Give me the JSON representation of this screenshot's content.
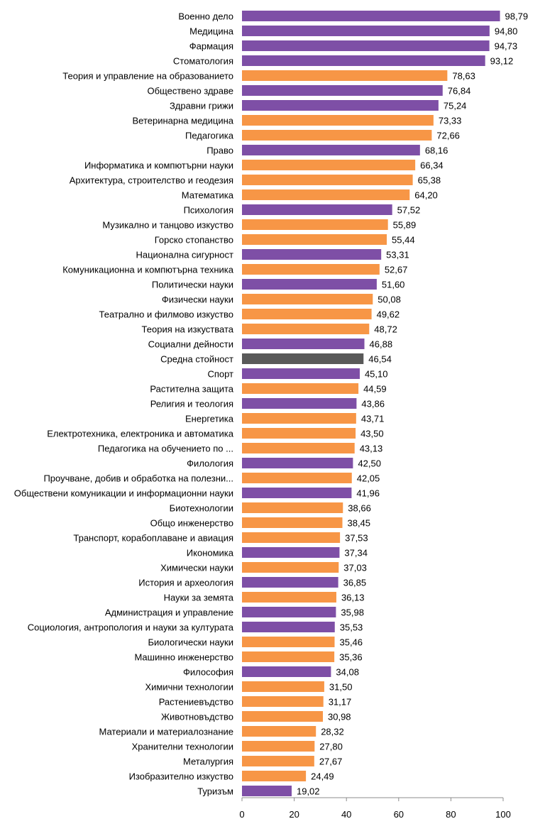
{
  "chart_data": {
    "type": "bar",
    "orientation": "horizontal",
    "title": "",
    "xlabel": "",
    "ylabel": "",
    "xlim": [
      0,
      100
    ],
    "xticks": [
      0,
      20,
      40,
      60,
      80,
      100
    ],
    "xtick_labels": [
      "0",
      "20",
      "40",
      "60",
      "80",
      "100"
    ],
    "grid": false,
    "legend": "none",
    "colors": {
      "purple": "#7e4fa6",
      "orange": "#f79646",
      "gray": "#595959"
    },
    "bars": [
      {
        "label": "Военно дело",
        "value": 98.79,
        "value_label": "98,79",
        "color": "purple"
      },
      {
        "label": "Медицина",
        "value": 94.8,
        "value_label": "94,80",
        "color": "purple"
      },
      {
        "label": "Фармация",
        "value": 94.73,
        "value_label": "94,73",
        "color": "purple"
      },
      {
        "label": "Стоматология",
        "value": 93.12,
        "value_label": "93,12",
        "color": "purple"
      },
      {
        "label": "Теория и управление  на образованието",
        "value": 78.63,
        "value_label": "78,63",
        "color": "orange"
      },
      {
        "label": "Обществено здраве",
        "value": 76.84,
        "value_label": "76,84",
        "color": "purple"
      },
      {
        "label": "Здравни грижи",
        "value": 75.24,
        "value_label": "75,24",
        "color": "purple"
      },
      {
        "label": "Ветеринарна медицина",
        "value": 73.33,
        "value_label": "73,33",
        "color": "orange"
      },
      {
        "label": "Педагогика",
        "value": 72.66,
        "value_label": "72,66",
        "color": "orange"
      },
      {
        "label": "Право",
        "value": 68.16,
        "value_label": "68,16",
        "color": "purple"
      },
      {
        "label": "Информатика и компютърни науки",
        "value": 66.34,
        "value_label": "66,34",
        "color": "orange"
      },
      {
        "label": "Архитектура,  строителство  и геодезия",
        "value": 65.38,
        "value_label": "65,38",
        "color": "orange"
      },
      {
        "label": "Математика",
        "value": 64.2,
        "value_label": "64,20",
        "color": "orange"
      },
      {
        "label": "Психология",
        "value": 57.52,
        "value_label": "57,52",
        "color": "purple"
      },
      {
        "label": "Музикално и танцово изкуство",
        "value": 55.89,
        "value_label": "55,89",
        "color": "orange"
      },
      {
        "label": "Горско стопанство",
        "value": 55.44,
        "value_label": "55,44",
        "color": "orange"
      },
      {
        "label": "Национална сигурност",
        "value": 53.31,
        "value_label": "53,31",
        "color": "purple"
      },
      {
        "label": "Комуникационна и компютърна  техника",
        "value": 52.67,
        "value_label": "52,67",
        "color": "orange"
      },
      {
        "label": "Политически науки",
        "value": 51.6,
        "value_label": "51,60",
        "color": "purple"
      },
      {
        "label": "Физически науки",
        "value": 50.08,
        "value_label": "50,08",
        "color": "orange"
      },
      {
        "label": "Театрално и филмово изкуство",
        "value": 49.62,
        "value_label": "49,62",
        "color": "orange"
      },
      {
        "label": "Теория на изкуствата",
        "value": 48.72,
        "value_label": "48,72",
        "color": "orange"
      },
      {
        "label": "Социални дейности",
        "value": 46.88,
        "value_label": "46,88",
        "color": "purple"
      },
      {
        "label": "Средна стойност",
        "value": 46.54,
        "value_label": "46,54",
        "color": "gray"
      },
      {
        "label": "Спорт",
        "value": 45.1,
        "value_label": "45,10",
        "color": "purple"
      },
      {
        "label": "Растителна защита",
        "value": 44.59,
        "value_label": "44,59",
        "color": "orange"
      },
      {
        "label": "Религия и теология",
        "value": 43.86,
        "value_label": "43,86",
        "color": "purple"
      },
      {
        "label": "Енергетика",
        "value": 43.71,
        "value_label": "43,71",
        "color": "orange"
      },
      {
        "label": "Електротехника, електроника и автоматика",
        "value": 43.5,
        "value_label": "43,50",
        "color": "orange"
      },
      {
        "label": "Педагогика на обучението  по ...",
        "value": 43.13,
        "value_label": "43,13",
        "color": "orange"
      },
      {
        "label": "Филология",
        "value": 42.5,
        "value_label": "42,50",
        "color": "purple"
      },
      {
        "label": "Проучване, добив и обработка  на полезни...",
        "value": 42.05,
        "value_label": "42,05",
        "color": "orange"
      },
      {
        "label": "Обществени комуникации и информационни науки",
        "value": 41.96,
        "value_label": "41,96",
        "color": "purple"
      },
      {
        "label": "Биотехнологии",
        "value": 38.66,
        "value_label": "38,66",
        "color": "orange"
      },
      {
        "label": "Общо инженерство",
        "value": 38.45,
        "value_label": "38,45",
        "color": "orange"
      },
      {
        "label": "Транспорт, корабоплаване  и авиация",
        "value": 37.53,
        "value_label": "37,53",
        "color": "orange"
      },
      {
        "label": "Икономика",
        "value": 37.34,
        "value_label": "37,34",
        "color": "purple"
      },
      {
        "label": "Химически науки",
        "value": 37.03,
        "value_label": "37,03",
        "color": "orange"
      },
      {
        "label": "История и археология",
        "value": 36.85,
        "value_label": "36,85",
        "color": "purple"
      },
      {
        "label": "Науки за земята",
        "value": 36.13,
        "value_label": "36,13",
        "color": "orange"
      },
      {
        "label": "Администрация и управление",
        "value": 35.98,
        "value_label": "35,98",
        "color": "purple"
      },
      {
        "label": "Социология, антропология  и науки за културата",
        "value": 35.53,
        "value_label": "35,53",
        "color": "purple"
      },
      {
        "label": "Биологически науки",
        "value": 35.46,
        "value_label": "35,46",
        "color": "orange"
      },
      {
        "label": "Машинно инженерство",
        "value": 35.36,
        "value_label": "35,36",
        "color": "orange"
      },
      {
        "label": "Философия",
        "value": 34.08,
        "value_label": "34,08",
        "color": "purple"
      },
      {
        "label": "Химични технологии",
        "value": 31.5,
        "value_label": "31,50",
        "color": "orange"
      },
      {
        "label": "Растениевъдство",
        "value": 31.17,
        "value_label": "31,17",
        "color": "orange"
      },
      {
        "label": "Животновъдство",
        "value": 30.98,
        "value_label": "30,98",
        "color": "orange"
      },
      {
        "label": "Материали и материалознание",
        "value": 28.32,
        "value_label": "28,32",
        "color": "orange"
      },
      {
        "label": "Хранителни технологии",
        "value": 27.8,
        "value_label": "27,80",
        "color": "orange"
      },
      {
        "label": "Металургия",
        "value": 27.67,
        "value_label": "27,67",
        "color": "orange"
      },
      {
        "label": "Изобразително  изкуство",
        "value": 24.49,
        "value_label": "24,49",
        "color": "orange"
      },
      {
        "label": "Туризъм",
        "value": 19.02,
        "value_label": "19,02",
        "color": "purple"
      }
    ]
  }
}
